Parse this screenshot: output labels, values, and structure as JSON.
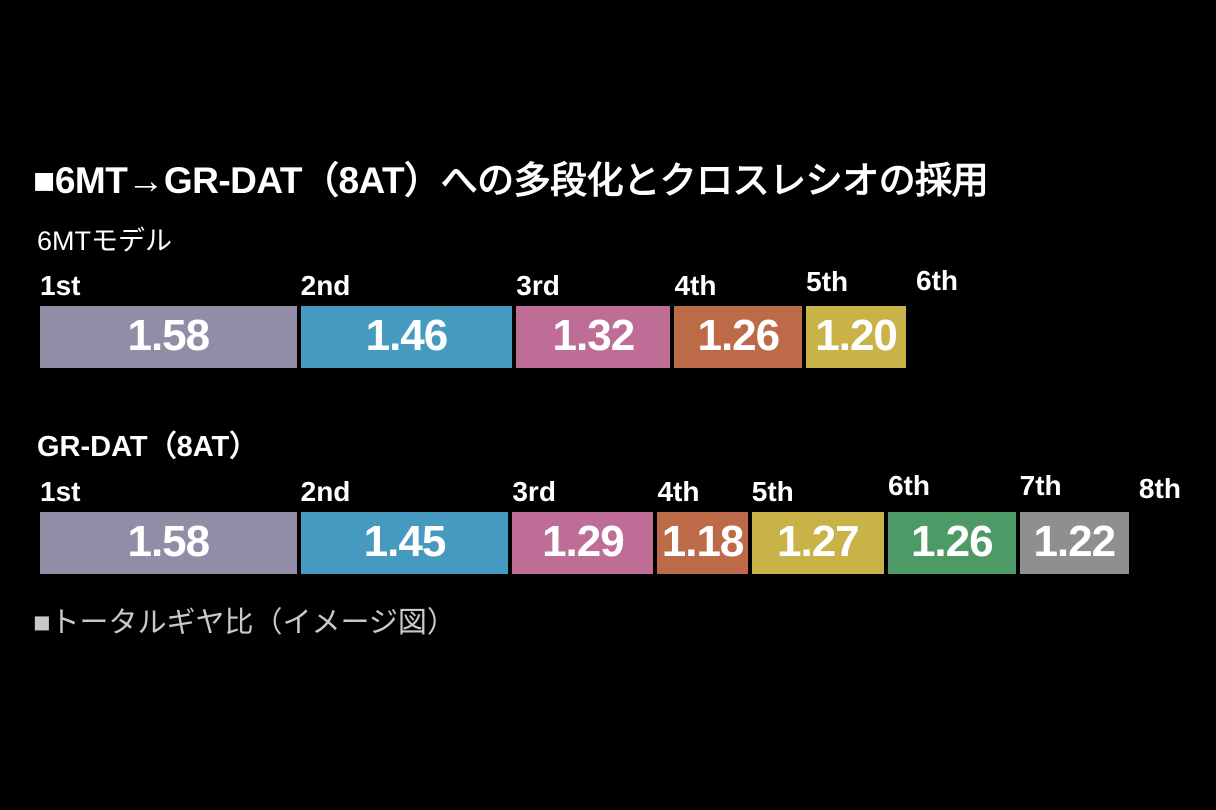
{
  "chart_data": {
    "type": "bar",
    "title": "■6MT→GR-DAT（8AT）への多段化とクロスレシオの採用",
    "caption": "■トータルギヤ比（イメージ図）",
    "layout_hint": "horizontal stacked segments; each segment width proportional to log10 of gear step ratio; trailing gear label has no segment",
    "rows": [
      {
        "label": "6MTモデル",
        "gears": [
          {
            "gear": "1st",
            "value": 1.58,
            "display": "1.58",
            "color": "#928CA6"
          },
          {
            "gear": "2nd",
            "value": 1.46,
            "display": "1.46",
            "color": "#479ABF"
          },
          {
            "gear": "3rd",
            "value": 1.32,
            "display": "1.32",
            "color": "#BE6D96"
          },
          {
            "gear": "4th",
            "value": 1.26,
            "display": "1.26",
            "color": "#BD6A48"
          },
          {
            "gear": "5th",
            "value": 1.2,
            "display": "1.20",
            "color": "#C9B349"
          }
        ],
        "end_gear": "6th"
      },
      {
        "label": "GR-DAT（8AT）",
        "gears": [
          {
            "gear": "1st",
            "value": 1.58,
            "display": "1.58",
            "color": "#928CA6"
          },
          {
            "gear": "2nd",
            "value": 1.45,
            "display": "1.45",
            "color": "#479ABF"
          },
          {
            "gear": "3rd",
            "value": 1.29,
            "display": "1.29",
            "color": "#BE6D96"
          },
          {
            "gear": "4th",
            "value": 1.18,
            "display": "1.18",
            "color": "#BD6A48"
          },
          {
            "gear": "5th",
            "value": 1.27,
            "display": "1.27",
            "color": "#C9B349"
          },
          {
            "gear": "6th",
            "value": 1.26,
            "display": "1.26",
            "color": "#4E9A66"
          },
          {
            "gear": "7th",
            "value": 1.22,
            "display": "1.22",
            "color": "#8F8F90"
          }
        ],
        "end_gear": "8th"
      }
    ],
    "colors": {
      "background": "#000000",
      "title_text": "#FFFFFF",
      "bar_value_text": "#FFFFFF",
      "caption_text": "#C9C9C9"
    }
  }
}
